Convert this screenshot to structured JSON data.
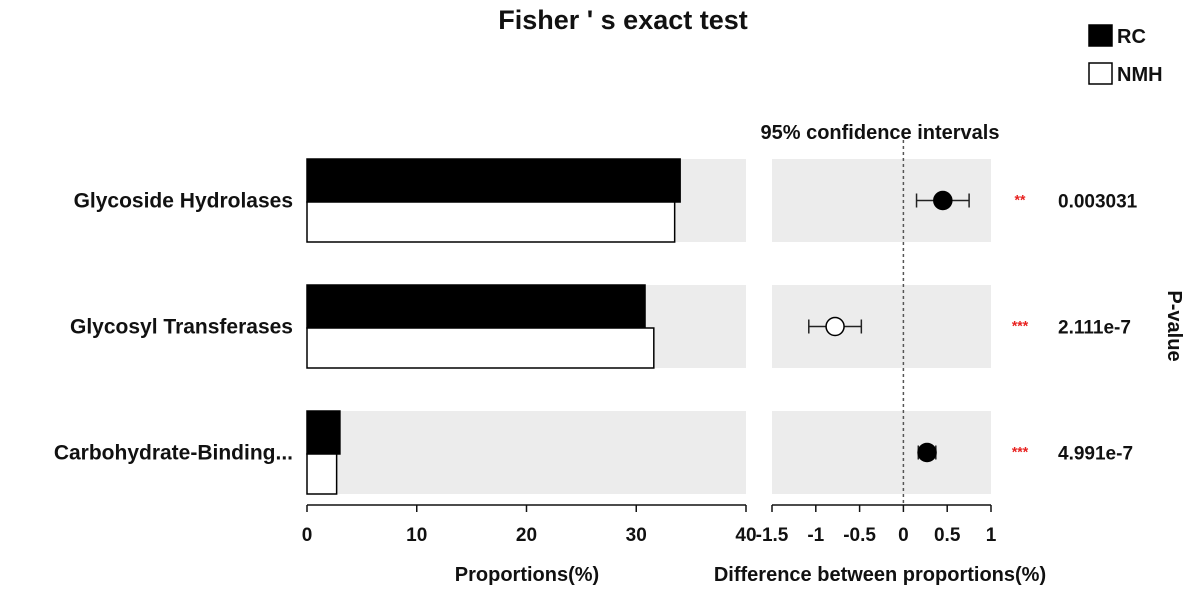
{
  "title": "Fisher ' s exact test",
  "legend": [
    {
      "name": "RC",
      "color": "#000000"
    },
    {
      "name": "NMH",
      "color": "#ffffff"
    }
  ],
  "ci_title": "95% confidence intervals",
  "pvalue_label": "P-value",
  "chart_data": [
    {
      "type": "bar",
      "orientation": "horizontal",
      "categories": [
        "Glycoside Hydrolases",
        "Glycosyl Transferases",
        "Carbohydrate-Binding..."
      ],
      "series": [
        {
          "name": "RC",
          "values": [
            34.0,
            30.8,
            3.0
          ],
          "color": "#000000"
        },
        {
          "name": "NMH",
          "values": [
            33.5,
            31.6,
            2.7
          ],
          "color": "#ffffff"
        }
      ],
      "xlabel": "Proportions(%)",
      "xlim": [
        0,
        40
      ],
      "xticks": [
        "0",
        "10",
        "20",
        "30",
        "40"
      ],
      "grid": false
    },
    {
      "type": "scatter",
      "subtype": "confidence-interval",
      "title": "95% confidence intervals",
      "categories": [
        "Glycoside Hydrolases",
        "Glycosyl Transferases",
        "Carbohydrate-Binding..."
      ],
      "points": [
        {
          "estimate": 0.45,
          "lower": 0.15,
          "upper": 0.75,
          "filled": true
        },
        {
          "estimate": -0.78,
          "lower": -1.08,
          "upper": -0.48,
          "filled": false
        },
        {
          "estimate": 0.27,
          "lower": 0.17,
          "upper": 0.37,
          "filled": true
        }
      ],
      "xlabel": "Difference between proportions(%)",
      "xlim": [
        -1.5,
        1
      ],
      "xticks": [
        "-1.5",
        "-1",
        "-0.5",
        "0",
        "0.5",
        "1"
      ],
      "reference_line": 0
    }
  ],
  "pvalues": [
    {
      "stars": "**",
      "value": "0.003031"
    },
    {
      "stars": "***",
      "value": "2.111e-7"
    },
    {
      "stars": "***",
      "value": "4.991e-7"
    }
  ],
  "colors": {
    "panel_bg": "#ececec",
    "stars": "#e8201e",
    "axis": "#111111"
  }
}
